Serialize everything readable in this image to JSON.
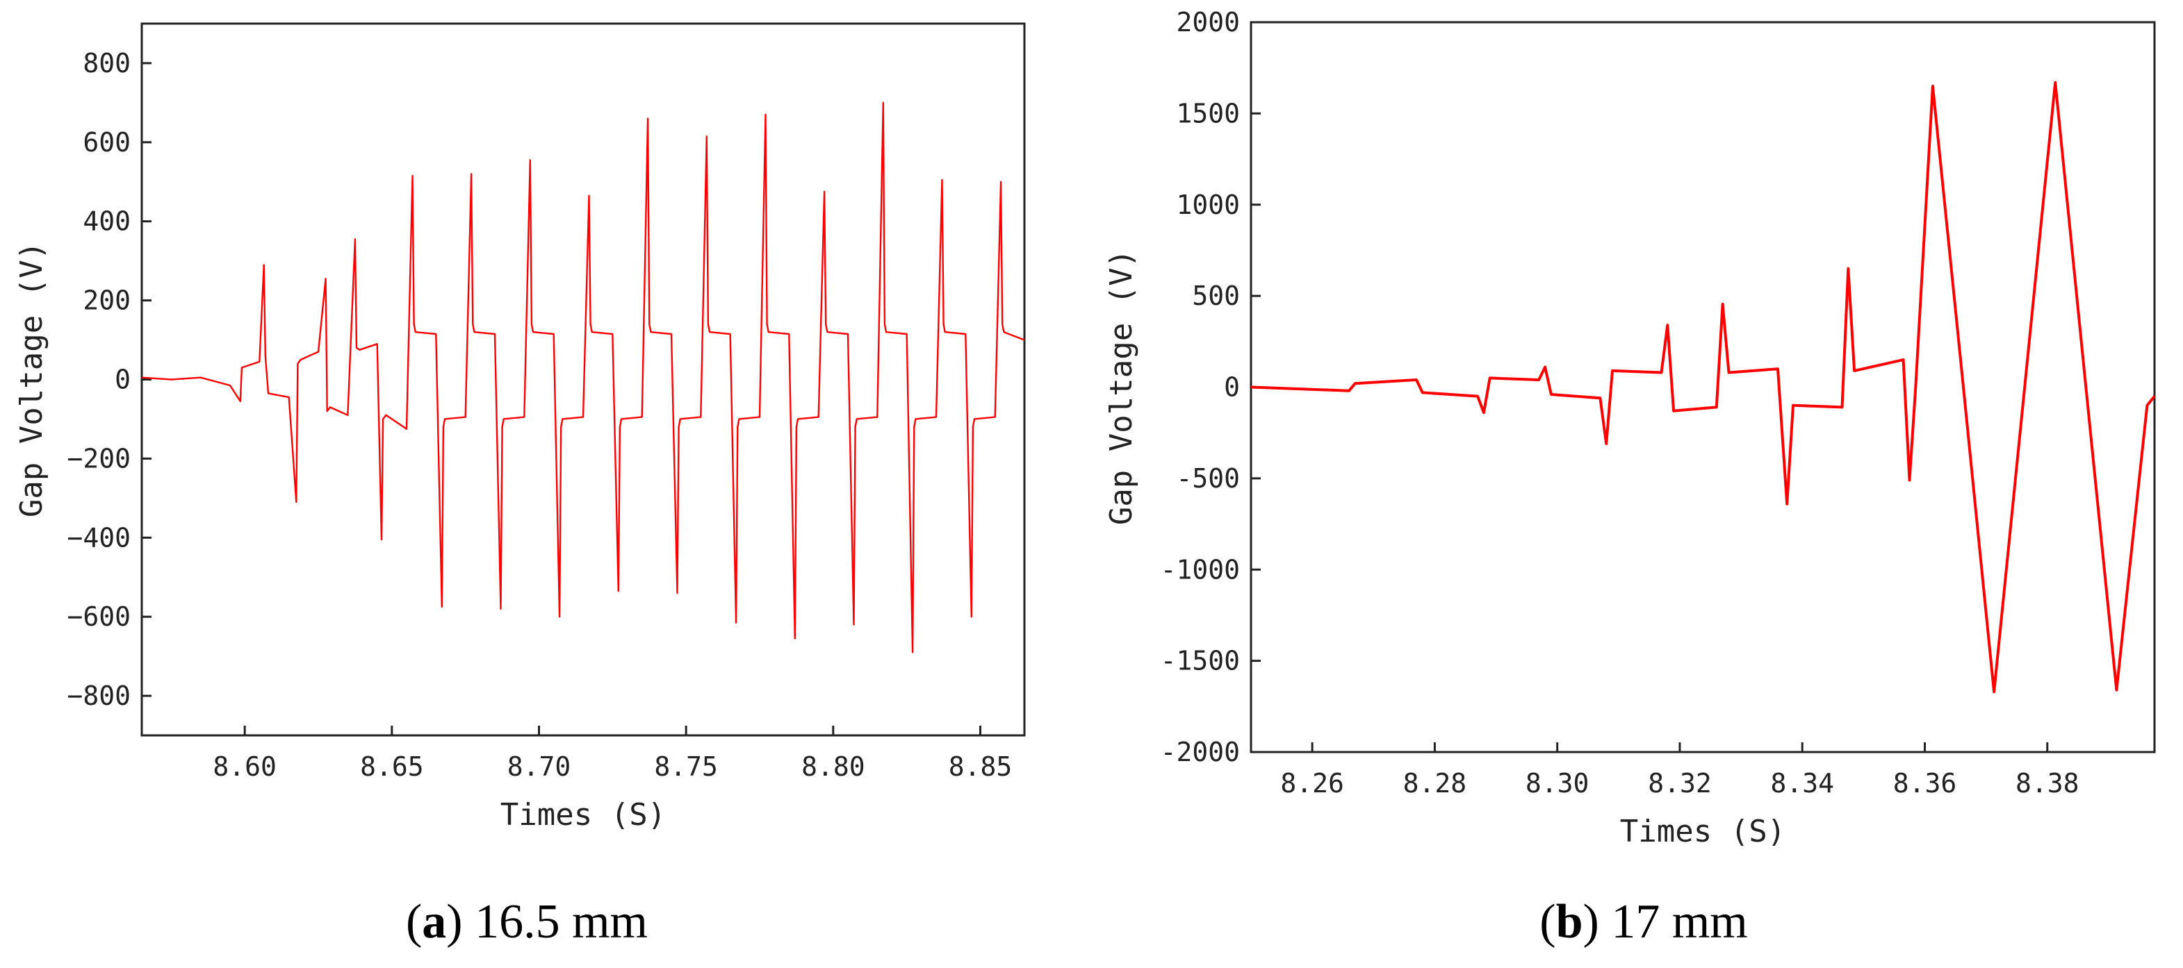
{
  "colors": {
    "series": "#ff0000",
    "axis": "#222222",
    "text": "#222222"
  },
  "chart_data": [
    {
      "type": "line",
      "caption_letter": "a",
      "caption_text": "16.5 mm",
      "xlabel": "Times (S)",
      "ylabel": "Gap Voltage (V)",
      "xlim": [
        8.565,
        8.865
      ],
      "ylim": [
        -900,
        900
      ],
      "xticks": [
        8.6,
        8.65,
        8.7,
        8.75,
        8.8,
        8.85
      ],
      "xtick_labels": [
        "8.60",
        "8.65",
        "8.70",
        "8.75",
        "8.80",
        "8.85"
      ],
      "yticks": [
        -800,
        -600,
        -400,
        -200,
        0,
        200,
        400,
        600,
        800
      ],
      "ytick_labels": [
        "−800",
        "−600",
        "−400",
        "−200",
        "0",
        "200",
        "400",
        "600",
        "800"
      ],
      "grid": false,
      "series": [
        {
          "name": "Gap Voltage",
          "x": [
            8.565,
            8.575,
            8.585,
            8.595,
            8.5985,
            8.599,
            8.605,
            8.6065,
            8.607,
            8.608,
            8.615,
            8.6175,
            8.618,
            8.619,
            8.625,
            8.6275,
            8.628,
            8.629,
            8.635,
            8.6375,
            8.638,
            8.639,
            8.645,
            8.6465,
            8.647,
            8.648,
            8.655,
            8.657,
            8.6575,
            8.658,
            8.665,
            8.667,
            8.6675,
            8.668,
            8.675,
            8.677,
            8.6775,
            8.678,
            8.685,
            8.687,
            8.6875,
            8.688,
            8.695,
            8.697,
            8.6975,
            8.698,
            8.705,
            8.707,
            8.7075,
            8.708,
            8.715,
            8.717,
            8.7175,
            8.718,
            8.725,
            8.727,
            8.7275,
            8.728,
            8.735,
            8.737,
            8.7375,
            8.738,
            8.745,
            8.747,
            8.7475,
            8.748,
            8.755,
            8.757,
            8.7575,
            8.758,
            8.765,
            8.767,
            8.7675,
            8.768,
            8.775,
            8.777,
            8.7775,
            8.778,
            8.785,
            8.787,
            8.7875,
            8.788,
            8.795,
            8.797,
            8.7975,
            8.798,
            8.805,
            8.807,
            8.8075,
            8.808,
            8.815,
            8.817,
            8.8175,
            8.818,
            8.825,
            8.827,
            8.8275,
            8.828,
            8.835,
            8.837,
            8.8375,
            8.838,
            8.845,
            8.847,
            8.8475,
            8.848,
            8.855,
            8.857,
            8.8575,
            8.858,
            8.865
          ],
          "y": [
            5,
            0,
            5,
            -15,
            -55,
            30,
            45,
            290,
            60,
            -35,
            -45,
            -310,
            40,
            50,
            70,
            255,
            -80,
            -70,
            -90,
            355,
            80,
            75,
            90,
            -405,
            -100,
            -90,
            -125,
            515,
            140,
            120,
            115,
            -575,
            -120,
            -100,
            -95,
            520,
            140,
            120,
            115,
            -580,
            -120,
            -100,
            -95,
            555,
            140,
            120,
            115,
            -600,
            -120,
            -100,
            -95,
            465,
            140,
            120,
            115,
            -535,
            -120,
            -100,
            -95,
            660,
            140,
            120,
            115,
            -540,
            -120,
            -100,
            -95,
            615,
            140,
            120,
            115,
            -615,
            -120,
            -100,
            -95,
            670,
            140,
            120,
            115,
            -655,
            -120,
            -100,
            -95,
            475,
            140,
            120,
            115,
            -620,
            -120,
            -100,
            -95,
            700,
            140,
            120,
            115,
            -690,
            -120,
            -100,
            -95,
            505,
            140,
            120,
            115,
            -600,
            -120,
            -100,
            -95,
            500,
            140,
            120,
            100
          ]
        }
      ]
    },
    {
      "type": "line",
      "caption_letter": "b",
      "caption_text": "17 mm",
      "xlabel": "Times (S)",
      "ylabel": "Gap Voltage (V)",
      "xlim": [
        8.25,
        8.3975
      ],
      "ylim": [
        -2000,
        2000
      ],
      "xticks": [
        8.26,
        8.28,
        8.3,
        8.32,
        8.34,
        8.36,
        8.38
      ],
      "xtick_labels": [
        "8.26",
        "8.28",
        "8.30",
        "8.32",
        "8.34",
        "8.36",
        "8.38"
      ],
      "yticks": [
        -2000,
        -1500,
        -1000,
        -500,
        0,
        500,
        1000,
        1500,
        2000
      ],
      "ytick_labels": [
        "-2000",
        "-1500",
        "-1000",
        "-500",
        "0",
        "500",
        "1000",
        "1500",
        "2000"
      ],
      "grid": false,
      "series": [
        {
          "name": "Gap Voltage",
          "x": [
            8.25,
            8.258,
            8.266,
            8.267,
            8.277,
            8.278,
            8.287,
            8.288,
            8.289,
            8.297,
            8.298,
            8.299,
            8.307,
            8.308,
            8.309,
            8.317,
            8.318,
            8.319,
            8.326,
            8.327,
            8.328,
            8.336,
            8.3375,
            8.3385,
            8.3465,
            8.3475,
            8.3485,
            8.3565,
            8.3575,
            8.3585,
            8.3613,
            8.3663,
            8.3713,
            8.3763,
            8.3813,
            8.3863,
            8.3913,
            8.3963,
            8.3975
          ],
          "y": [
            0,
            -10,
            -20,
            20,
            40,
            -30,
            -50,
            -140,
            50,
            40,
            110,
            -40,
            -60,
            -310,
            90,
            80,
            340,
            -130,
            -110,
            455,
            80,
            100,
            -640,
            -100,
            -110,
            650,
            90,
            150,
            -510,
            0,
            1650,
            0,
            -1670,
            0,
            1670,
            0,
            -1660,
            -100,
            -50
          ]
        }
      ]
    }
  ]
}
